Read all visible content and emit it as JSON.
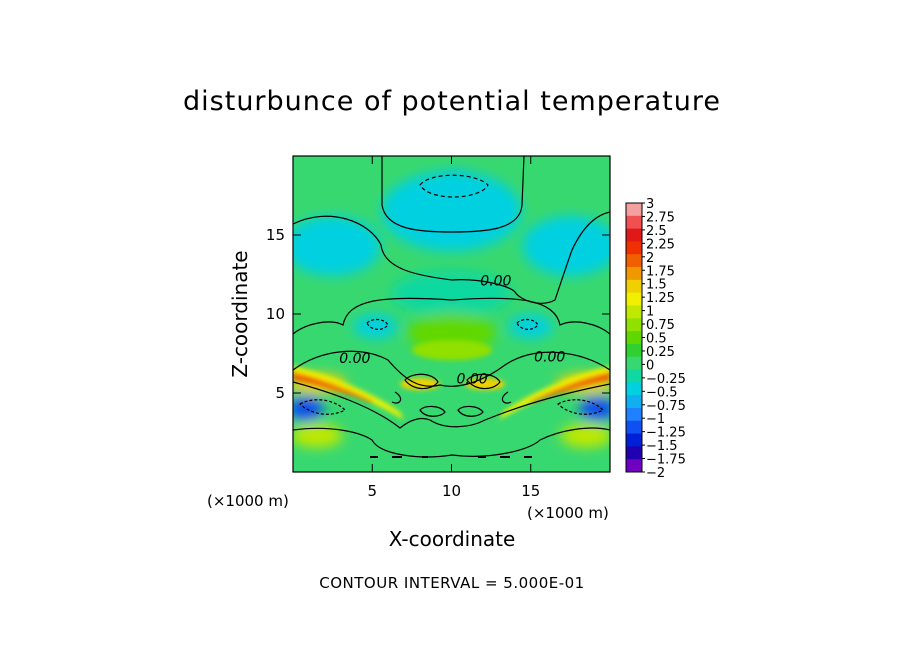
{
  "title": "disturbunce of potential temperature",
  "caption": "CONTOUR INTERVAL = 5.000E-01",
  "chart_data": {
    "type": "heatmap",
    "title": "disturbunce of potential temperature",
    "xlabel": "X-coordinate",
    "ylabel": "Z-coordinate",
    "x_unit_label": "(×1000 m)",
    "z_unit_label": "(×1000 m)",
    "xlim": [
      0,
      20
    ],
    "ylim": [
      0,
      20
    ],
    "x_ticks": [
      5,
      10,
      15
    ],
    "y_ticks": [
      5,
      10,
      15
    ],
    "contour_interval": 0.5,
    "contour_labels": [
      {
        "text": "0.00",
        "x": 12.8,
        "z": 11.8
      },
      {
        "text": "0.00",
        "x": 3.9,
        "z": 6.9
      },
      {
        "text": "0.00",
        "x": 16.2,
        "z": 7.0
      },
      {
        "text": "0.00",
        "x": 11.3,
        "z": 5.6
      }
    ],
    "colorbar": {
      "levels": [
        "3",
        "2.75",
        "2.5",
        "2.25",
        "2",
        "1.75",
        "1.5",
        "1.25",
        "1",
        "0.75",
        "0.5",
        "0.25",
        "0",
        "−0.25",
        "−0.5",
        "−0.75",
        "−1",
        "−1.25",
        "−1.5",
        "−1.75",
        "−2"
      ],
      "colors": [
        "#f4a0a0",
        "#f05050",
        "#e01818",
        "#f03000",
        "#f06000",
        "#f09800",
        "#f0d000",
        "#f0f000",
        "#c0e800",
        "#90e000",
        "#60d800",
        "#30d030",
        "#38d870",
        "#10d8a0",
        "#00d0e0",
        "#10b0f0",
        "#2080ff",
        "#1050f0",
        "#0020d8",
        "#2000b0",
        "#7000c0"
      ]
    },
    "fields": [
      {
        "x": 10.2,
        "z": 18.0,
        "value": -0.7
      },
      {
        "x": 10.0,
        "z": 16.5,
        "value": -0.45
      },
      {
        "x": 2.5,
        "z": 14.3,
        "value": -0.4
      },
      {
        "x": 17.5,
        "z": 14.3,
        "value": -0.4
      },
      {
        "x": 10.0,
        "z": 11.3,
        "value": -0.3
      },
      {
        "x": 5.2,
        "z": 9.2,
        "value": -0.45
      },
      {
        "x": 15.0,
        "z": 9.2,
        "value": -0.45
      },
      {
        "x": 0.8,
        "z": 4.0,
        "value": -1.2
      },
      {
        "x": 19.2,
        "z": 4.0,
        "value": -1.2
      },
      {
        "x": 10.0,
        "z": 8.8,
        "value": 0.6
      },
      {
        "x": 1.5,
        "z": 5.6,
        "value": 1.6
      },
      {
        "x": 18.5,
        "z": 5.6,
        "value": 1.6
      },
      {
        "x": 1.5,
        "z": 2.3,
        "value": 1.1
      },
      {
        "x": 18.5,
        "z": 2.3,
        "value": 1.1
      }
    ]
  }
}
